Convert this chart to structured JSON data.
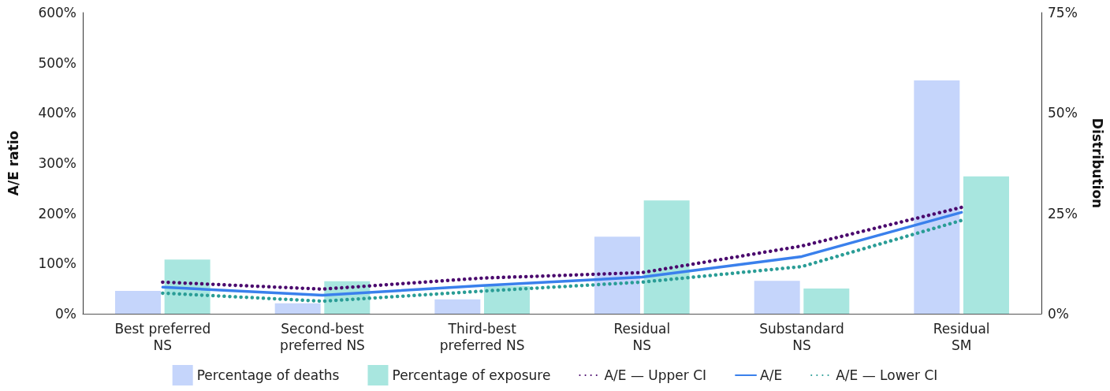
{
  "chart_data": {
    "type": "bar",
    "ylabel": "A/E ratio",
    "y2label": "Distribution",
    "categories": [
      "Best preferred\nNS",
      "Second-best\npreferred NS",
      "Third-best\npreferred NS",
      "Residual\nNS",
      "Substandard\nNS",
      "Residual\nSM"
    ],
    "series": [
      {
        "name": "Percentage of deaths",
        "axis": "y2",
        "color": "#c5d5fb",
        "values": [
          5.7,
          2.6,
          3.6,
          19.2,
          8.2,
          58.1
        ]
      },
      {
        "name": "Percentage of exposure",
        "axis": "y2",
        "color": "#a8e6df",
        "values": [
          13.5,
          8.1,
          6.9,
          28.2,
          6.3,
          34.2
        ]
      },
      {
        "name": "A/E — Upper CI",
        "type": "line",
        "line_style": "dotted",
        "color": "#4b0a6e",
        "values": [
          63,
          49,
          71,
          82,
          135,
          212
        ]
      },
      {
        "name": "A/E",
        "type": "line",
        "line_style": "solid",
        "color": "#3a80ec",
        "values": [
          53,
          37,
          56,
          73,
          114,
          202
        ]
      },
      {
        "name": "A/E — Lower CI",
        "type": "line",
        "line_style": "dotted",
        "color": "#2a9d96",
        "values": [
          41,
          25,
          45,
          63,
          94,
          186
        ]
      }
    ],
    "ylim": [
      0,
      600
    ],
    "yticks": [
      {
        "value": 0,
        "label": "0%"
      },
      {
        "value": 100,
        "label": "100%"
      },
      {
        "value": 200,
        "label": "200%"
      },
      {
        "value": 300,
        "label": "300%"
      },
      {
        "value": 400,
        "label": "400%"
      },
      {
        "value": 500,
        "label": "500%"
      },
      {
        "value": 600,
        "label": "600%"
      }
    ],
    "y2lim": [
      0,
      75
    ],
    "y2ticks": [
      {
        "value": 0,
        "label": "0%"
      },
      {
        "value": 25,
        "label": "25%"
      },
      {
        "value": 50,
        "label": "50%"
      },
      {
        "value": 75,
        "label": "75%"
      }
    ],
    "marker": "none",
    "grid": false,
    "legend": "bottom"
  }
}
